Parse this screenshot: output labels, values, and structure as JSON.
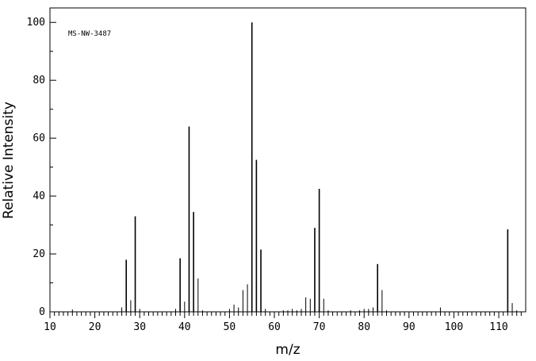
{
  "chart_data": {
    "type": "bar",
    "annotation": "MS-NW-3487",
    "xlabel": "m/z",
    "ylabel": "Relative Intensity",
    "xlim": [
      10,
      116
    ],
    "ylim": [
      0,
      105
    ],
    "x_ticks": [
      10,
      20,
      30,
      40,
      50,
      60,
      70,
      80,
      90,
      100,
      110
    ],
    "y_ticks": [
      0,
      20,
      40,
      60,
      80,
      100
    ],
    "grid": false,
    "legend": "none",
    "series": [
      {
        "x": [
          15,
          26,
          27,
          28,
          29,
          30,
          38,
          39,
          40,
          41,
          42,
          43,
          44,
          50,
          51,
          52,
          53,
          54,
          55,
          56,
          57,
          58,
          62,
          63,
          64,
          65,
          66,
          67,
          68,
          69,
          70,
          71,
          72,
          77,
          79,
          80,
          81,
          82,
          83,
          84,
          85,
          97,
          112,
          113,
          114
        ],
        "values": [
          0.8,
          1.5,
          18,
          4,
          33,
          1,
          1,
          18.5,
          3.5,
          64,
          34.5,
          11.5,
          0.5,
          1,
          2.5,
          1.5,
          7.5,
          9.5,
          100,
          52.5,
          21.5,
          1,
          0.5,
          0.5,
          1,
          0.5,
          1,
          5,
          4.5,
          29,
          42.5,
          4.5,
          0.5,
          0.5,
          0.5,
          1,
          1,
          1.5,
          16.5,
          7.5,
          0.5,
          1.5,
          28.5,
          3,
          0.5
        ]
      }
    ]
  }
}
